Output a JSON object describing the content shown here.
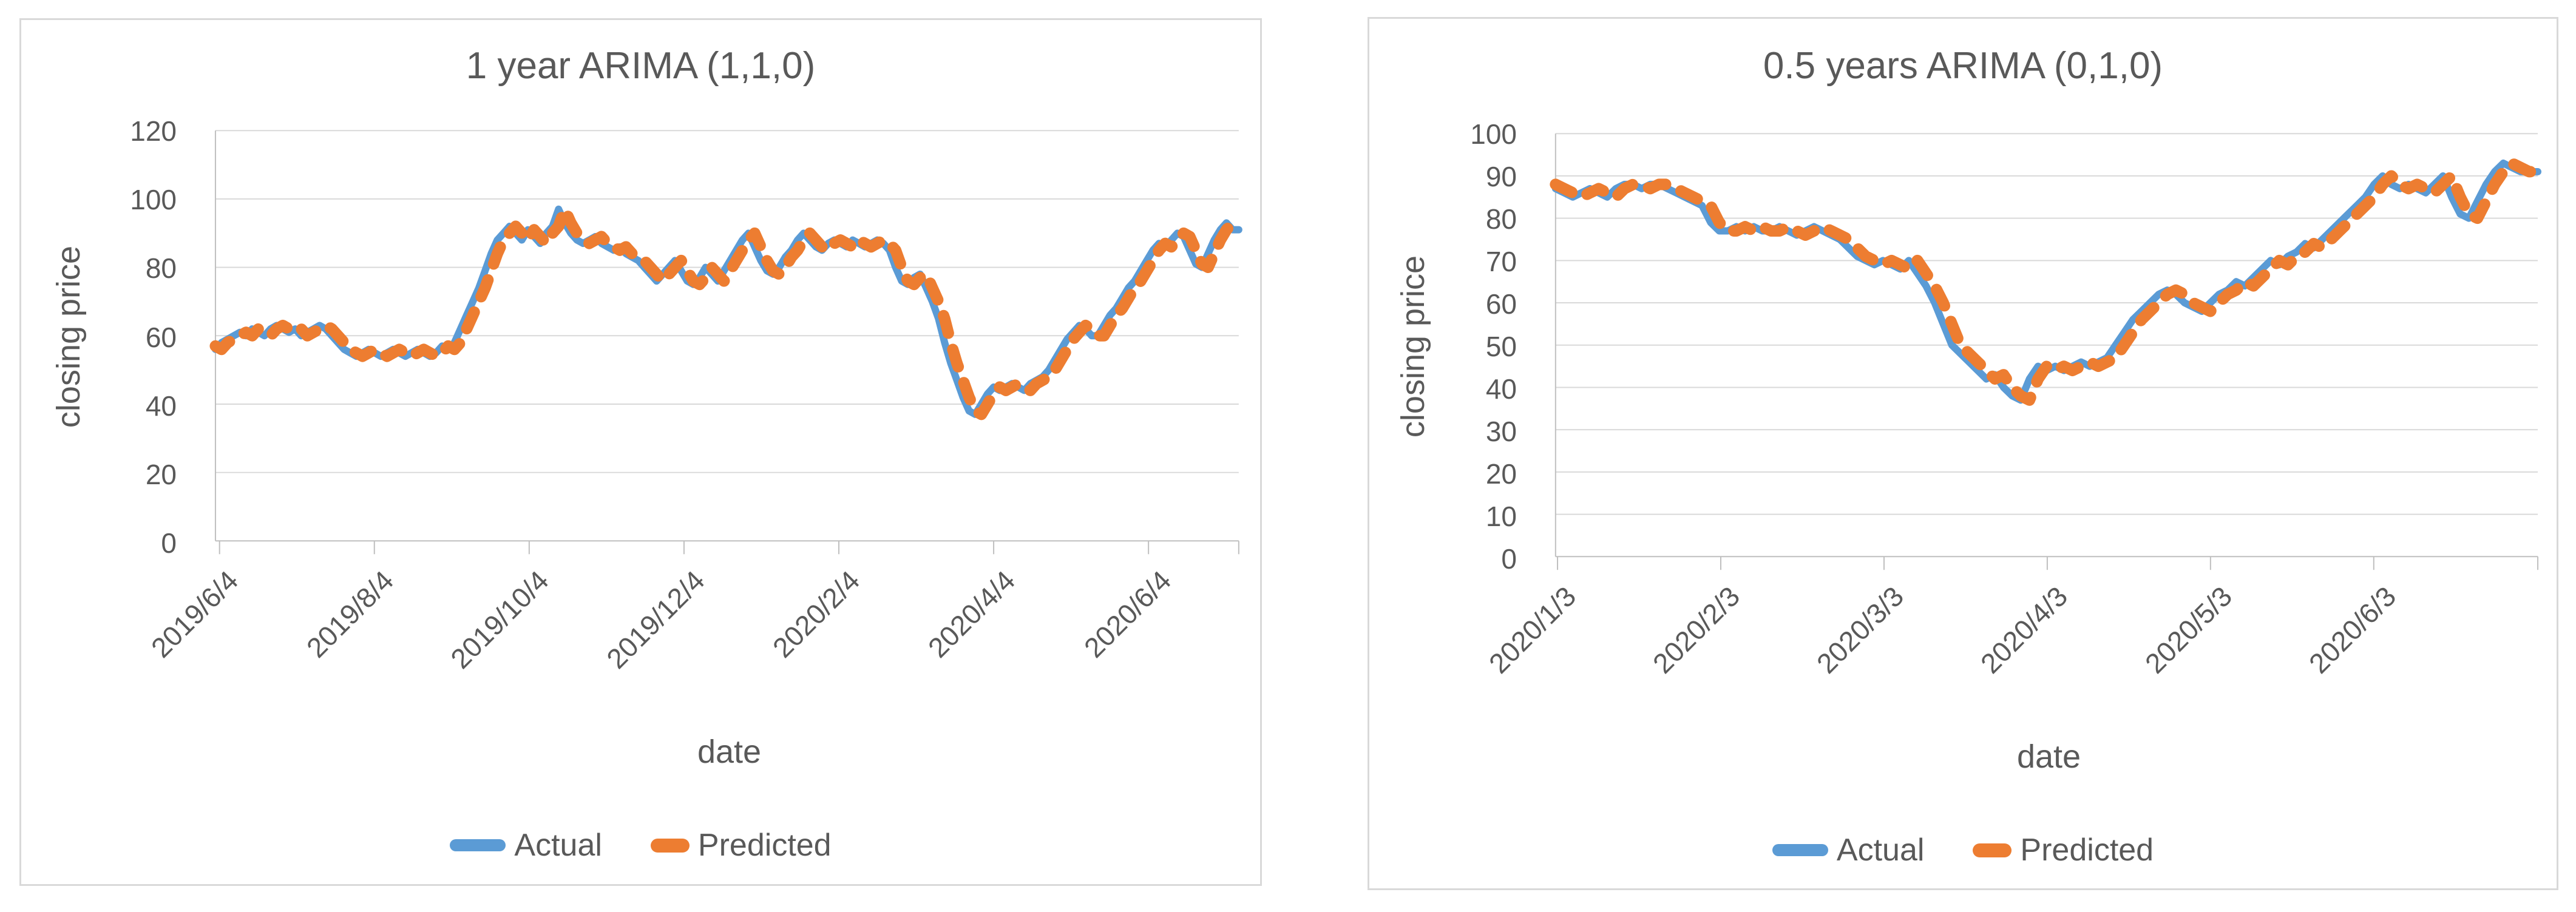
{
  "colors": {
    "actual": "#5B9BD5",
    "predicted": "#ED7D31",
    "text": "#595959",
    "gridline": "#D9D9D9",
    "axis_line": "#BFBFBF",
    "chart_border": "#D9D9D9"
  },
  "chart_data": [
    {
      "type": "line",
      "title": "1 year ARIMA (1,1,0)",
      "xlabel": "date",
      "ylabel": "closing price",
      "ylim": [
        0,
        120
      ],
      "y_ticks": [
        0,
        20,
        40,
        60,
        80,
        100,
        120
      ],
      "grid": "horizontal",
      "legend_position": "bottom",
      "x_ticks": [
        {
          "label": "2019/6/4",
          "f": 0.004
        },
        {
          "label": "2019/8/4",
          "f": 0.1553
        },
        {
          "label": "2019/10/4",
          "f": 0.3066
        },
        {
          "label": "2019/12/4",
          "f": 0.4579
        },
        {
          "label": "2020/2/4",
          "f": 0.6092
        },
        {
          "label": "2020/4/4",
          "f": 0.7605
        },
        {
          "label": "2020/6/4",
          "f": 0.9118
        },
        {
          "label": "",
          "f": 1.0
        }
      ],
      "series": [
        {
          "name": "Actual",
          "color": "#5B9BD5",
          "style": "solid",
          "values": [
            56,
            58,
            59,
            60,
            61,
            60,
            62,
            61,
            60,
            62,
            63,
            62,
            61,
            62,
            60,
            61,
            62,
            63,
            62,
            60,
            58,
            56,
            55,
            54,
            55,
            56,
            55,
            54,
            55,
            56,
            55,
            54,
            55,
            56,
            55,
            54,
            55,
            57,
            56,
            58,
            62,
            66,
            70,
            74,
            79,
            84,
            88,
            90,
            92,
            90,
            88,
            91,
            89,
            87,
            90,
            92,
            97,
            93,
            90,
            88,
            87,
            88,
            89,
            87,
            86,
            85,
            86,
            84,
            83,
            82,
            80,
            78,
            76,
            78,
            80,
            82,
            79,
            76,
            75,
            77,
            80,
            78,
            76,
            79,
            82,
            85,
            88,
            90,
            86,
            82,
            79,
            78,
            80,
            83,
            85,
            88,
            90,
            88,
            86,
            85,
            87,
            88,
            87,
            86,
            88,
            87,
            86,
            87,
            88,
            87,
            85,
            80,
            76,
            75,
            77,
            78,
            74,
            70,
            65,
            58,
            52,
            47,
            42,
            38,
            37,
            40,
            43,
            45,
            44,
            45,
            46,
            45,
            44,
            46,
            47,
            48,
            50,
            53,
            56,
            59,
            61,
            63,
            62,
            60,
            60,
            63,
            66,
            68,
            71,
            74,
            76,
            79,
            82,
            85,
            87,
            86,
            88,
            90,
            89,
            85,
            81,
            80,
            84,
            88,
            91,
            93,
            91,
            91
          ]
        },
        {
          "name": "Predicted",
          "color": "#ED7D31",
          "style": "dashed",
          "values": [
            57,
            56,
            58,
            59,
            60,
            61,
            60,
            62,
            61,
            60,
            62,
            63,
            62,
            61,
            62,
            60,
            61,
            62,
            63,
            62,
            60,
            58,
            56,
            55,
            54,
            55,
            56,
            55,
            54,
            55,
            56,
            55,
            54,
            55,
            56,
            55,
            54,
            55,
            57,
            56,
            58,
            62,
            66,
            70,
            74,
            79,
            84,
            88,
            90,
            92,
            90,
            88,
            91,
            89,
            87,
            90,
            92,
            97,
            93,
            90,
            88,
            87,
            88,
            89,
            87,
            86,
            85,
            86,
            84,
            83,
            82,
            80,
            78,
            76,
            78,
            80,
            82,
            79,
            76,
            75,
            77,
            80,
            78,
            76,
            79,
            82,
            85,
            88,
            90,
            86,
            82,
            79,
            78,
            80,
            83,
            85,
            88,
            90,
            88,
            86,
            85,
            87,
            88,
            87,
            86,
            88,
            87,
            86,
            87,
            88,
            87,
            85,
            80,
            76,
            75,
            77,
            78,
            74,
            70,
            65,
            58,
            52,
            47,
            42,
            38,
            37,
            40,
            43,
            45,
            44,
            45,
            46,
            45,
            44,
            46,
            47,
            48,
            50,
            53,
            56,
            59,
            61,
            63,
            62,
            60,
            60,
            63,
            66,
            68,
            71,
            74,
            76,
            79,
            82,
            85,
            87,
            86,
            88,
            90,
            89,
            85,
            81,
            80,
            84,
            88,
            91,
            93,
            91
          ]
        }
      ]
    },
    {
      "type": "line",
      "title": "0.5 years ARIMA (0,1,0)",
      "xlabel": "date",
      "ylabel": "closing price",
      "ylim": [
        0,
        100
      ],
      "y_ticks": [
        0,
        10,
        20,
        30,
        40,
        50,
        60,
        70,
        80,
        90,
        100
      ],
      "grid": "horizontal",
      "legend_position": "bottom",
      "x_ticks": [
        {
          "label": "2020/1/3",
          "f": 0.002
        },
        {
          "label": "2020/2/3",
          "f": 0.1682
        },
        {
          "label": "2020/3/3",
          "f": 0.3344
        },
        {
          "label": "2020/4/3",
          "f": 0.5006
        },
        {
          "label": "2020/5/3",
          "f": 0.6668
        },
        {
          "label": "2020/6/3",
          "f": 0.833
        },
        {
          "label": "",
          "f": 1.0
        }
      ],
      "series": [
        {
          "name": "Actual",
          "color": "#5B9BD5",
          "style": "solid",
          "values": [
            87,
            86,
            85,
            86,
            87,
            86,
            85,
            87,
            88,
            88,
            87,
            88,
            88,
            87,
            86,
            85,
            84,
            83,
            79,
            77,
            77,
            78,
            77,
            78,
            77,
            77,
            78,
            77,
            76,
            77,
            78,
            77,
            76,
            75,
            73,
            71,
            70,
            69,
            70,
            69,
            68,
            70,
            67,
            64,
            60,
            55,
            50,
            48,
            46,
            44,
            42,
            43,
            40,
            38,
            37,
            42,
            45,
            44,
            45,
            44,
            45,
            46,
            45,
            46,
            47,
            50,
            53,
            56,
            58,
            60,
            62,
            63,
            62,
            60,
            59,
            58,
            60,
            62,
            63,
            65,
            64,
            66,
            68,
            70,
            69,
            71,
            72,
            74,
            73,
            75,
            77,
            79,
            81,
            83,
            85,
            88,
            90,
            88,
            87,
            88,
            87,
            86,
            88,
            90,
            85,
            81,
            80,
            84,
            88,
            91,
            93,
            92,
            91,
            91,
            91
          ]
        },
        {
          "name": "Predicted",
          "color": "#ED7D31",
          "style": "dashed",
          "values": [
            88,
            87,
            86,
            85,
            86,
            87,
            86,
            85,
            87,
            88,
            88,
            87,
            88,
            88,
            87,
            86,
            85,
            84,
            83,
            79,
            77,
            77,
            78,
            77,
            78,
            77,
            77,
            78,
            77,
            76,
            77,
            78,
            77,
            76,
            75,
            73,
            71,
            70,
            69,
            70,
            69,
            68,
            70,
            67,
            64,
            60,
            55,
            50,
            48,
            46,
            44,
            42,
            43,
            40,
            38,
            37,
            42,
            45,
            44,
            45,
            44,
            45,
            46,
            45,
            46,
            47,
            50,
            53,
            56,
            58,
            60,
            62,
            63,
            62,
            60,
            59,
            58,
            60,
            62,
            63,
            65,
            64,
            66,
            68,
            70,
            69,
            71,
            72,
            74,
            73,
            75,
            77,
            79,
            81,
            83,
            85,
            88,
            90,
            88,
            87,
            88,
            87,
            86,
            88,
            90,
            85,
            81,
            80,
            84,
            88,
            91,
            93,
            92,
            91,
            91
          ]
        }
      ]
    }
  ]
}
